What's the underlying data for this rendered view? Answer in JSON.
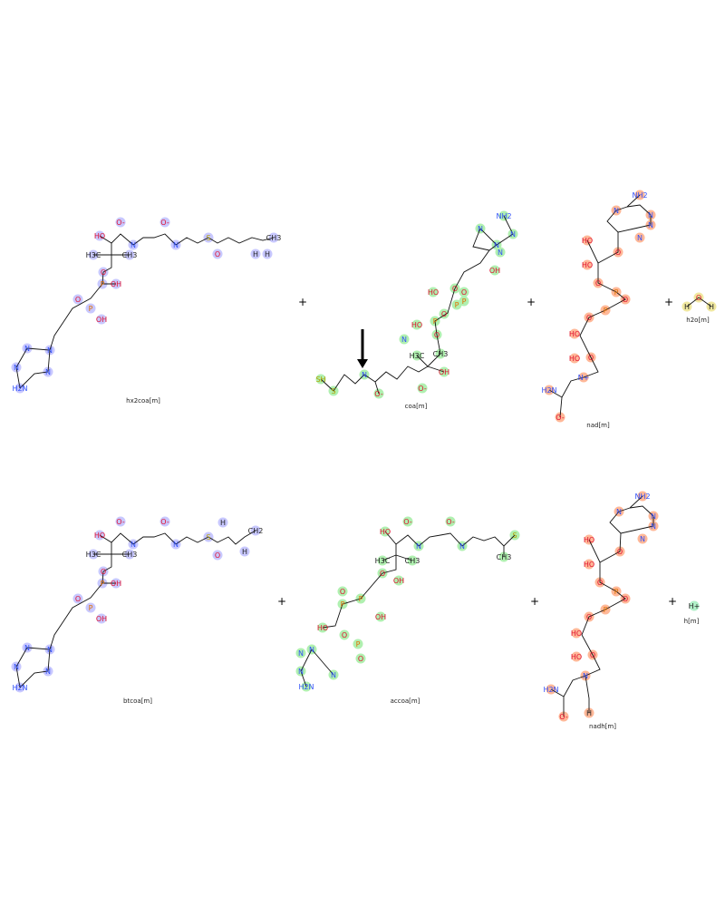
{
  "reaction": {
    "reactants": [
      {
        "name": "hx2coa[m]",
        "highlight": "#c8c8ff",
        "atoms": [
          "HO",
          "O-",
          "N",
          "O-",
          "N",
          "S",
          "O",
          "CH3",
          "H",
          "H",
          "H3C",
          "CH3",
          "O",
          "P",
          "OH",
          "O",
          "P",
          "OH",
          "N",
          "N",
          "N",
          "N",
          "H2N"
        ]
      },
      {
        "name": "coa[m]",
        "highlight": "#b0f0b0",
        "atoms": [
          "SH",
          "S",
          "N",
          "O-",
          "N",
          "O-",
          "OH",
          "H3C",
          "CH3",
          "O",
          "P",
          "HO",
          "O",
          "P",
          "HO",
          "O",
          "P",
          "O",
          "OH",
          "N",
          "N",
          "N",
          "N",
          "NH2"
        ]
      },
      {
        "name": "nad[m]",
        "highlight": "#ffb898",
        "atoms": [
          "NH2",
          "N",
          "N",
          "N",
          "N",
          "HO",
          "HO",
          "O",
          "O",
          "P",
          "O",
          "P",
          "O",
          "HO",
          "HO",
          "O",
          "N+",
          "O-",
          "H2N"
        ]
      },
      {
        "name": "h2o[m]",
        "highlight": "#f0e8a0",
        "atoms": [
          "H",
          "O",
          "H"
        ]
      }
    ],
    "products": [
      {
        "name": "btcoa[m]",
        "highlight": "#c8c8ff",
        "atoms": [
          "HO",
          "O-",
          "N",
          "O-",
          "N",
          "S",
          "O",
          "CH2",
          "H",
          "H",
          "H3C",
          "CH3",
          "O",
          "P",
          "OH",
          "O",
          "P",
          "OH",
          "N",
          "N",
          "N",
          "N",
          "H2N"
        ]
      },
      {
        "name": "accoa[m]",
        "highlight": "#b0f0b0",
        "atoms": [
          "O-",
          "O-",
          "S",
          "HO",
          "N",
          "N",
          "H3C",
          "CH3",
          "O",
          "P",
          "OH",
          "O",
          "P",
          "OH",
          "O",
          "P",
          "O",
          "HO",
          "N",
          "N",
          "N",
          "N",
          "H2N",
          "CH3"
        ]
      },
      {
        "name": "nadh[m]",
        "highlight": "#ffb898",
        "atoms": [
          "NH2",
          "N",
          "N",
          "N",
          "N",
          "HO",
          "HO",
          "O",
          "O",
          "P",
          "O",
          "P",
          "O",
          "HO",
          "HO",
          "O",
          "N",
          "O-",
          "H2N",
          "H"
        ]
      },
      {
        "name": "h[m]",
        "highlight": "#b0f0c8",
        "atoms": [
          "H+"
        ]
      }
    ],
    "plus_sign": "+",
    "arrow_color": "#000000"
  }
}
